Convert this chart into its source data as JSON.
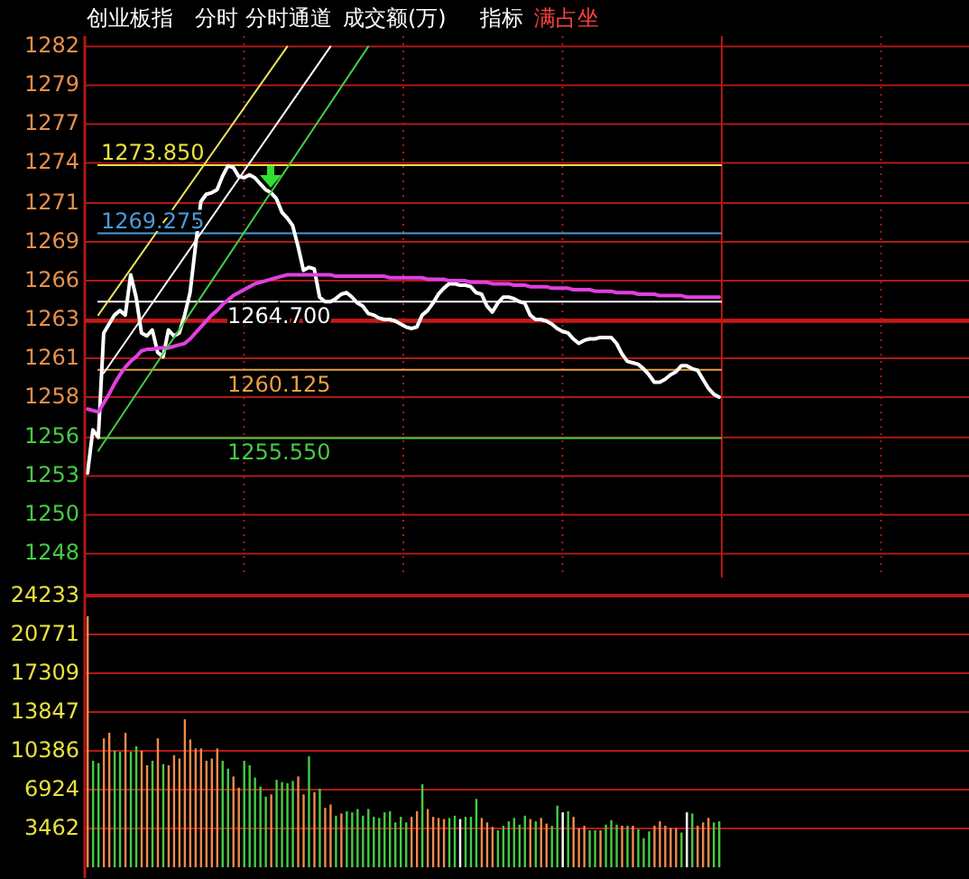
{
  "chart_data": [
    {
      "type": "line",
      "title": "创业板指",
      "annotations": [
        "分时",
        "分时通道",
        "成交额(万)",
        "指标",
        "满占坐"
      ],
      "categories": [
        null,
        null,
        null,
        null,
        null,
        null,
        null,
        null,
        null,
        null,
        null,
        null,
        null,
        null,
        null,
        null,
        null,
        null,
        null,
        null,
        null,
        null,
        null,
        null,
        null,
        null,
        null,
        null,
        null,
        null,
        null,
        null,
        null,
        null,
        null,
        null,
        null,
        null,
        null,
        null,
        null,
        null,
        null,
        null,
        null,
        null,
        null,
        null,
        null,
        null,
        null,
        null,
        null,
        null,
        null,
        null,
        null,
        null,
        null,
        null,
        null,
        null,
        null,
        null,
        null,
        null,
        null,
        null,
        null,
        null,
        null,
        null,
        null,
        null,
        null,
        null,
        null,
        null,
        null,
        null,
        null,
        null,
        null,
        null,
        null,
        null,
        null,
        null,
        null,
        null,
        null,
        null,
        null,
        null,
        null,
        null,
        null,
        null,
        null,
        null,
        null,
        null,
        null,
        null,
        null,
        null,
        null,
        null,
        null,
        null,
        null,
        null,
        null,
        null,
        null,
        null,
        null,
        null
      ],
      "series": [
        {
          "color": "#ffffff",
          "values": [
            1253.2,
            1256.1,
            1255.6,
            1262.6,
            1263.2,
            1263.8,
            1264.1,
            1263.8,
            1266.5,
            1265.0,
            1262.6,
            1262.4,
            1262.8,
            1261.3,
            1261.0,
            1262.8,
            1262.4,
            1262.6,
            1263.8,
            1265.3,
            1268.4,
            1271.4,
            1271.9,
            1272.0,
            1272.2,
            1273.1,
            1273.8,
            1273.7,
            1273.1,
            1273.0,
            1273.2,
            1273.0,
            1272.6,
            1272.2,
            1272.0,
            1271.6,
            1270.7,
            1270.3,
            1269.8,
            1268.4,
            1266.8,
            1267.0,
            1266.9,
            1265.0,
            1264.7,
            1264.7,
            1264.9,
            1265.2,
            1265.3,
            1265.0,
            1264.6,
            1264.4,
            1263.9,
            1263.8,
            1263.6,
            1263.5,
            1263.5,
            1263.4,
            1263.2,
            1263.0,
            1262.9,
            1263.0,
            1263.8,
            1264.1,
            1264.6,
            1265.2,
            1265.6,
            1265.9,
            1265.9,
            1265.8,
            1265.8,
            1265.7,
            1265.3,
            1265.2,
            1264.4,
            1264.0,
            1264.6,
            1265.0,
            1265.0,
            1264.9,
            1264.7,
            1264.6,
            1263.8,
            1263.5,
            1263.5,
            1263.4,
            1263.2,
            1262.9,
            1262.7,
            1262.6,
            1262.2,
            1261.9,
            1262.1,
            1262.2,
            1262.2,
            1262.3,
            1262.3,
            1262.3,
            1261.9,
            1261.2,
            1260.7,
            1260.6,
            1260.5,
            1260.2,
            1259.8,
            1259.3,
            1259.3,
            1259.5,
            1259.8,
            1260.0,
            1260.4,
            1260.4,
            1260.2,
            1260.1,
            1259.5,
            1258.9,
            1258.5,
            1258.3
          ]
        },
        {
          "color": "#e040e0",
          "values": [
            1257.5,
            1257.4,
            1257.3,
            1257.9,
            1258.5,
            1259.2,
            1259.8,
            1260.3,
            1260.7,
            1261.0,
            1261.4,
            1261.5,
            1261.5,
            1261.6,
            1261.6,
            1261.6,
            1261.7,
            1261.8,
            1261.9,
            1262.2,
            1262.6,
            1263.0,
            1263.4,
            1263.8,
            1264.1,
            1264.5,
            1264.8,
            1265.1,
            1265.3,
            1265.5,
            1265.7,
            1265.9,
            1266.0,
            1266.1,
            1266.2,
            1266.3,
            1266.4,
            1266.5,
            1266.5,
            1266.5,
            1266.5,
            1266.5,
            1266.5,
            1266.5,
            1266.5,
            1266.5,
            1266.4,
            1266.4,
            1266.4,
            1266.4,
            1266.4,
            1266.4,
            1266.4,
            1266.4,
            1266.4,
            1266.4,
            1266.3,
            1266.3,
            1266.3,
            1266.3,
            1266.3,
            1266.3,
            1266.3,
            1266.2,
            1266.2,
            1266.2,
            1266.2,
            1266.1,
            1266.1,
            1266.1,
            1266.1,
            1266.0,
            1266.0,
            1266.0,
            1266.0,
            1265.9,
            1265.9,
            1265.9,
            1265.9,
            1265.8,
            1265.8,
            1265.8,
            1265.7,
            1265.7,
            1265.7,
            1265.7,
            1265.6,
            1265.6,
            1265.6,
            1265.6,
            1265.5,
            1265.5,
            1265.5,
            1265.5,
            1265.4,
            1265.4,
            1265.4,
            1265.4,
            1265.3,
            1265.3,
            1265.3,
            1265.3,
            1265.2,
            1265.2,
            1265.2,
            1265.2,
            1265.1,
            1265.1,
            1265.1,
            1265.1,
            1265.1,
            1265.0,
            1265.0,
            1265.0,
            1265.0,
            1265.0,
            1265.0,
            1265.0
          ]
        },
        {
          "color": "#e8e060",
          "values": [
            null,
            null,
            1263.8,
            null,
            null,
            null,
            null,
            null,
            null,
            null,
            null,
            null,
            null,
            null,
            null,
            null,
            null,
            null,
            null,
            null,
            null,
            null,
            null,
            null,
            null,
            null,
            null,
            null,
            null,
            null,
            null,
            null,
            null,
            null,
            null,
            null,
            null,
            1281.8,
            null,
            null,
            null,
            null,
            null,
            null,
            null,
            null,
            null,
            null,
            null,
            null,
            null,
            null,
            null,
            null,
            null,
            null,
            null,
            null,
            null,
            null,
            null,
            null,
            null,
            null,
            null,
            null,
            null,
            null,
            null,
            null,
            null,
            null,
            null,
            null,
            null,
            null,
            null,
            null,
            null,
            null,
            null,
            null,
            null,
            null,
            null,
            null,
            null,
            null,
            null,
            null,
            null,
            null,
            null,
            null,
            null,
            null,
            null,
            null,
            null,
            null,
            null,
            null,
            null,
            null,
            null,
            null,
            null,
            null,
            null,
            null,
            null,
            null,
            null,
            null,
            null,
            null,
            null,
            null
          ]
        },
        {
          "color": "#ffffff",
          "values": [
            null,
            null,
            null,
            1259.9,
            null,
            null,
            null,
            null,
            null,
            null,
            null,
            null,
            null,
            null,
            null,
            null,
            null,
            null,
            null,
            null,
            null,
            null,
            null,
            null,
            null,
            null,
            null,
            null,
            null,
            null,
            null,
            null,
            null,
            null,
            null,
            null,
            null,
            null,
            null,
            null,
            null,
            null,
            null,
            null,
            null,
            1281.8,
            null,
            null,
            null,
            null,
            null,
            null,
            null,
            null,
            null,
            null,
            null,
            null,
            null,
            null,
            null,
            null,
            null,
            null,
            null,
            null,
            null,
            null,
            null,
            null,
            null,
            null,
            null,
            null,
            null,
            null,
            null,
            null,
            null,
            null,
            null,
            null,
            null,
            null,
            null,
            null,
            null,
            null,
            null,
            null,
            null,
            null,
            null,
            null,
            null,
            null,
            null,
            null,
            null,
            null,
            null,
            null,
            null,
            null,
            null,
            null,
            null,
            null,
            null,
            null,
            null,
            null,
            null,
            null,
            null,
            null,
            null,
            null
          ]
        },
        {
          "color": "#44cc44",
          "values": [
            null,
            null,
            1254.7,
            null,
            null,
            null,
            null,
            null,
            null,
            null,
            null,
            null,
            null,
            null,
            null,
            null,
            null,
            null,
            null,
            null,
            null,
            null,
            null,
            null,
            null,
            null,
            null,
            null,
            null,
            null,
            null,
            null,
            null,
            null,
            null,
            null,
            null,
            null,
            null,
            null,
            null,
            null,
            null,
            null,
            null,
            null,
            null,
            null,
            null,
            null,
            null,
            null,
            1281.8,
            null,
            null,
            null,
            null,
            null,
            null,
            null,
            null,
            null,
            null,
            null,
            null,
            null,
            null,
            null,
            null,
            null,
            null,
            null,
            null,
            null,
            null,
            null,
            null,
            null,
            null,
            null,
            null,
            null,
            null,
            null,
            null,
            null,
            null,
            null,
            null,
            null,
            null,
            null,
            null,
            null,
            null,
            null,
            null,
            null,
            null,
            null,
            null,
            null,
            null,
            null,
            null,
            null,
            null,
            null,
            null,
            null,
            null,
            null,
            null,
            null,
            null,
            null,
            null,
            null
          ]
        }
      ],
      "ylim": [
        1246.2,
        1282.5
      ],
      "yticks": [
        {
          "value": 1281.8,
          "label": "1282"
        },
        {
          "value": 1279.2,
          "label": "1279"
        },
        {
          "value": 1276.6,
          "label": "1277"
        },
        {
          "value": 1274.0,
          "label": "1274"
        },
        {
          "value": 1271.3,
          "label": "1271"
        },
        {
          "value": 1268.7,
          "label": "1269"
        },
        {
          "value": 1266.1,
          "label": "1266"
        },
        {
          "value": 1263.5,
          "label": "1263"
        },
        {
          "value": 1260.9,
          "label": "1261"
        },
        {
          "value": 1258.3,
          "label": "1258"
        },
        {
          "value": 1255.6,
          "label": "1256"
        },
        {
          "value": 1253.0,
          "label": "1253"
        },
        {
          "value": 1250.4,
          "label": "1250"
        },
        {
          "value": 1247.8,
          "label": "1248"
        }
      ],
      "ref_lines": [
        {
          "axis": "y",
          "value": 1273.85,
          "label": "1273.850",
          "color": "#e8e040"
        },
        {
          "axis": "y",
          "value": 1269.275,
          "label": "1269.275",
          "color": "#4a9ad8"
        },
        {
          "axis": "y",
          "value": 1264.7,
          "label": "1264.700",
          "color": "#ffffff"
        },
        {
          "axis": "y",
          "value": 1260.125,
          "label": "1260.125",
          "color": "#e8a040"
        },
        {
          "axis": "y",
          "value": 1255.55,
          "label": "1255.550",
          "color": "#44cc44"
        },
        {
          "axis": "y",
          "value": 1263.4,
          "color": "#c81818"
        }
      ],
      "grid": true,
      "tick_labels": "y"
    },
    {
      "type": "bar",
      "categories": [
        null,
        null,
        null,
        null,
        null,
        null,
        null,
        null,
        null,
        null,
        null,
        null,
        null,
        null,
        null,
        null,
        null,
        null,
        null,
        null,
        null,
        null,
        null,
        null,
        null,
        null,
        null,
        null,
        null,
        null,
        null,
        null,
        null,
        null,
        null,
        null,
        null,
        null,
        null,
        null,
        null,
        null,
        null,
        null,
        null,
        null,
        null,
        null,
        null,
        null,
        null,
        null,
        null,
        null,
        null,
        null,
        null,
        null,
        null,
        null,
        null,
        null,
        null,
        null,
        null,
        null,
        null,
        null,
        null,
        null,
        null,
        null,
        null,
        null,
        null,
        null,
        null,
        null,
        null,
        null,
        null,
        null,
        null,
        null,
        null,
        null,
        null,
        null,
        null,
        null,
        null,
        null,
        null,
        null,
        null,
        null,
        null,
        null,
        null,
        null,
        null,
        null,
        null,
        null,
        null,
        null,
        null,
        null,
        null,
        null,
        null,
        null,
        null,
        null,
        null,
        null,
        null,
        null
      ],
      "values": [
        22400,
        9500,
        9300,
        11500,
        12000,
        10400,
        10300,
        12000,
        10300,
        10800,
        10400,
        9100,
        9500,
        11500,
        9200,
        9100,
        10000,
        9700,
        13200,
        11400,
        10600,
        10600,
        9500,
        9700,
        10600,
        9500,
        8800,
        8100,
        7100,
        9500,
        9100,
        8000,
        7200,
        6300,
        6500,
        7800,
        7600,
        7500,
        7700,
        8100,
        6500,
        9900,
        6700,
        7000,
        5300,
        5600,
        4600,
        4800,
        5000,
        4900,
        5200,
        4600,
        5200,
        4500,
        4400,
        4900,
        5000,
        4000,
        4500,
        4000,
        4500,
        5000,
        7400,
        5200,
        4500,
        4400,
        4300,
        4400,
        4600,
        4300,
        4500,
        4500,
        6100,
        4400,
        4000,
        3600,
        3300,
        3700,
        4100,
        4400,
        3800,
        4600,
        4300,
        4100,
        4400,
        3900,
        3700,
        5500,
        4900,
        5000,
        4500,
        3500,
        3700,
        3300,
        3300,
        3300,
        3800,
        4200,
        3800,
        3700,
        3700,
        3700,
        3400,
        2600,
        3200,
        3700,
        4100,
        3700,
        3500,
        3500,
        3100,
        4900,
        4800,
        3700,
        4000,
        4400,
        4000,
        4100
      ],
      "colors": [
        "#f08a4b",
        "#44cc44",
        "#44cc44",
        "#f08a4b",
        "#f08a4b",
        "#44cc44",
        "#44cc44",
        "#f08a4b",
        "#44cc44",
        "#44cc44",
        "#f08a4b",
        "#f08a4b",
        "#44cc44",
        "#f08a4b",
        "#44cc44",
        "#f08a4b",
        "#f08a4b",
        "#f08a4b",
        "#f08a4b",
        "#f08a4b",
        "#f08a4b",
        "#f08a4b",
        "#f08a4b",
        "#f08a4b",
        "#f08a4b",
        "#44cc44",
        "#44cc44",
        "#f08a4b",
        "#f08a4b",
        "#44cc44",
        "#44cc44",
        "#44cc44",
        "#44cc44",
        "#44cc44",
        "#f08a4b",
        "#44cc44",
        "#44cc44",
        "#44cc44",
        "#44cc44",
        "#f08a4b",
        "#f08a4b",
        "#44cc44",
        "#f08a4b",
        "#44cc44",
        "#f08a4b",
        "#f08a4b",
        "#44cc44",
        "#f08a4b",
        "#44cc44",
        "#44cc44",
        "#44cc44",
        "#44cc44",
        "#44cc44",
        "#44cc44",
        "#44cc44",
        "#44cc44",
        "#44cc44",
        "#44cc44",
        "#44cc44",
        "#44cc44",
        "#f08a4b",
        "#f08a4b",
        "#44cc44",
        "#f08a4b",
        "#f08a4b",
        "#f08a4b",
        "#f08a4b",
        "#44cc44",
        "#44cc44",
        "#ffffff",
        "#44cc44",
        "#44cc44",
        "#44cc44",
        "#f08a4b",
        "#f08a4b",
        "#f08a4b",
        "#44cc44",
        "#44cc44",
        "#44cc44",
        "#44cc44",
        "#44cc44",
        "#44cc44",
        "#f08a4b",
        "#44cc44",
        "#f08a4b",
        "#f08a4b",
        "#44cc44",
        "#44cc44",
        "#ffffff",
        "#44cc44",
        "#f08a4b",
        "#f08a4b",
        "#f08a4b",
        "#44cc44",
        "#44cc44",
        "#f08a4b",
        "#44cc44",
        "#44cc44",
        "#44cc44",
        "#f08a4b",
        "#44cc44",
        "#f08a4b",
        "#44cc44",
        "#44cc44",
        "#44cc44",
        "#f08a4b",
        "#f08a4b",
        "#f08a4b",
        "#f08a4b",
        "#f08a4b",
        "#44cc44",
        "#ffffff",
        "#44cc44",
        "#f08a4b",
        "#f08a4b",
        "#f08a4b",
        "#44cc44",
        "#44cc44"
      ],
      "ylim": [
        0,
        24233
      ],
      "yticks": [
        3462,
        6924,
        10386,
        13847,
        17309,
        20771,
        24233
      ],
      "grid": "y",
      "tick_labels": "y"
    }
  ]
}
